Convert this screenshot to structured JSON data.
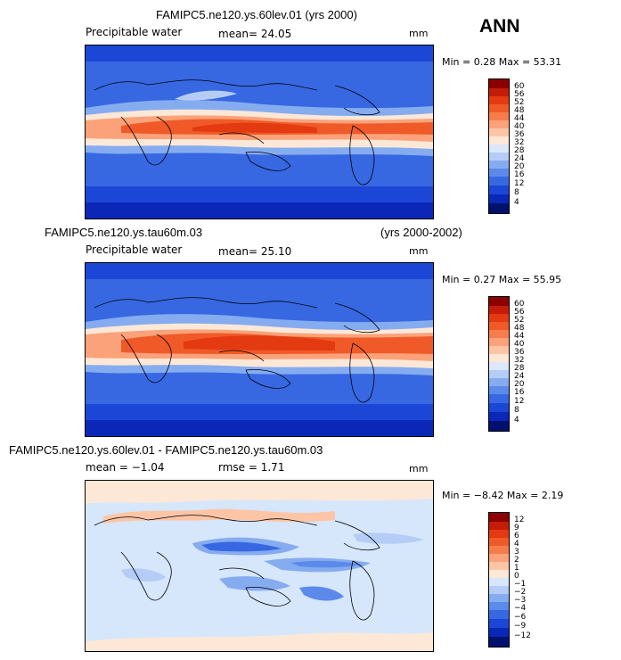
{
  "season": "ANN",
  "chart_data": [
    {
      "type": "heatmap",
      "title": "FAMIPC5.ne120.ys.60lev.01 (yrs 2000)",
      "variable": "Precipitable water",
      "mean_text": "mean=   24.05",
      "units": "mm",
      "minmax_text": "Min =    0.28  Max =    53.31",
      "min": 0.28,
      "max": 53.31,
      "mean": 24.05,
      "levels": [
        "60",
        "56",
        "52",
        "48",
        "44",
        "40",
        "36",
        "32",
        "28",
        "24",
        "20",
        "16",
        "12",
        "8",
        "4"
      ],
      "colors": [
        "#8b0000",
        "#c51c0a",
        "#e33a12",
        "#f05a28",
        "#f77c4b",
        "#fba27a",
        "#fdc5a6",
        "#fde8d8",
        "#dbe7fa",
        "#b5cdf6",
        "#86acf0",
        "#5b8aeb",
        "#3768e2",
        "#1c46d6",
        "#0a27b8",
        "#02116e"
      ]
    },
    {
      "type": "heatmap",
      "title": "FAMIPC5.ne120.ys.tau60m.03",
      "years": "(yrs 2000-2002)",
      "variable": "Precipitable water",
      "mean_text": "mean=   25.10",
      "units": "mm",
      "minmax_text": "Min =    0.27  Max =    55.95",
      "min": 0.27,
      "max": 55.95,
      "mean": 25.1,
      "levels": [
        "60",
        "56",
        "52",
        "48",
        "44",
        "40",
        "36",
        "32",
        "28",
        "24",
        "20",
        "16",
        "12",
        "8",
        "4"
      ],
      "colors": [
        "#8b0000",
        "#c51c0a",
        "#e33a12",
        "#f05a28",
        "#f77c4b",
        "#fba27a",
        "#fdc5a6",
        "#fde8d8",
        "#dbe7fa",
        "#b5cdf6",
        "#86acf0",
        "#5b8aeb",
        "#3768e2",
        "#1c46d6",
        "#0a27b8",
        "#02116e"
      ]
    },
    {
      "type": "heatmap",
      "title": "FAMIPC5.ne120.ys.60lev.01 - FAMIPC5.ne120.ys.tau60m.03",
      "mean_text": "mean =   −1.04",
      "rmse_text": "rmse =    1.71",
      "units": "mm",
      "minmax_text": "Min =   −8.42  Max =    2.19",
      "min": -8.42,
      "max": 2.19,
      "mean": -1.04,
      "rmse": 1.71,
      "levels": [
        "12",
        "9",
        "6",
        "4",
        "3",
        "2",
        "1",
        "0",
        "−1",
        "−2",
        "−3",
        "−4",
        "−6",
        "−9",
        "−12"
      ],
      "colors": [
        "#8b0000",
        "#c51c0a",
        "#e33a12",
        "#f05a28",
        "#f77c4b",
        "#fba27a",
        "#fdc5a6",
        "#fde8d8",
        "#d6e6fb",
        "#b5cdf6",
        "#86acf0",
        "#5b8aeb",
        "#3768e2",
        "#1c46d6",
        "#0a27b8",
        "#02116e"
      ]
    }
  ]
}
